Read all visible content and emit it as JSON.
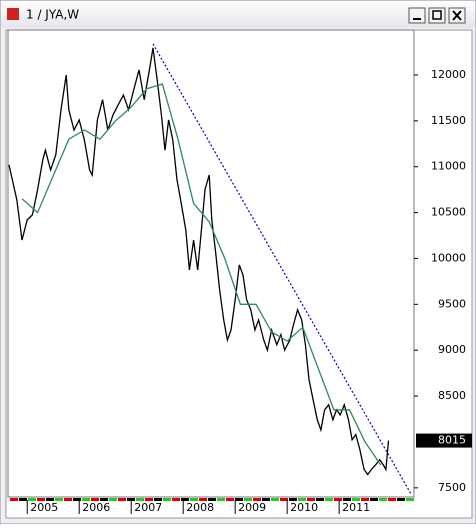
{
  "window_title": "1 / JYA,W",
  "chart_data": {
    "type": "line",
    "series": [
      {
        "color": "#000000",
        "style": "solid",
        "x": [
          2004.65,
          2004.8,
          2004.9,
          2005.0,
          2005.1,
          2005.2,
          2005.3,
          2005.35,
          2005.45,
          2005.55,
          2005.65,
          2005.75,
          2005.8,
          2005.9,
          2006.0,
          2006.1,
          2006.2,
          2006.25,
          2006.35,
          2006.45,
          2006.55,
          2006.65,
          2006.75,
          2006.85,
          2006.95,
          2007.05,
          2007.15,
          2007.25,
          2007.35,
          2007.42,
          2007.5,
          2007.58,
          2007.65,
          2007.72,
          2007.8,
          2007.88,
          2007.95,
          2008.05,
          2008.12,
          2008.2,
          2008.28,
          2008.35,
          2008.42,
          2008.5,
          2008.55,
          2008.62,
          2008.7,
          2008.78,
          2008.85,
          2008.92,
          2009.0,
          2009.08,
          2009.15,
          2009.22,
          2009.3,
          2009.38,
          2009.45,
          2009.55,
          2009.62,
          2009.7,
          2009.8,
          2009.88,
          2009.95,
          2010.05,
          2010.12,
          2010.2,
          2010.28,
          2010.35,
          2010.42,
          2010.5,
          2010.58,
          2010.65,
          2010.72,
          2010.8,
          2010.88,
          2010.95,
          2011.02,
          2011.1,
          2011.18,
          2011.25,
          2011.32,
          2011.4,
          2011.48,
          2011.55,
          2011.62,
          2011.7,
          2011.78,
          2011.85,
          2011.9,
          2011.95
        ],
        "values": [
          11020,
          10640,
          10200,
          10420,
          10475,
          10750,
          11075,
          11180,
          10965,
          11130,
          11620,
          12000,
          11620,
          11400,
          11510,
          11290,
          10965,
          10910,
          11510,
          11730,
          11400,
          11565,
          11675,
          11780,
          11620,
          11840,
          12055,
          11730,
          12055,
          12295,
          11945,
          11565,
          11180,
          11510,
          11290,
          10855,
          10640,
          10310,
          9875,
          10200,
          9875,
          10310,
          10750,
          10910,
          10420,
          10090,
          9660,
          9330,
          9110,
          9220,
          9550,
          9930,
          9820,
          9550,
          9440,
          9220,
          9330,
          9110,
          9000,
          9220,
          9060,
          9170,
          9000,
          9110,
          9275,
          9440,
          9330,
          9060,
          8680,
          8460,
          8240,
          8130,
          8350,
          8405,
          8240,
          8350,
          8295,
          8405,
          8240,
          8025,
          8080,
          7915,
          7700,
          7645,
          7700,
          7750,
          7805,
          7750,
          7700,
          8015
        ]
      },
      {
        "color": "#2e8b57",
        "style": "solid",
        "x": [
          2004.9,
          2005.2,
          2005.5,
          2005.8,
          2006.1,
          2006.4,
          2006.7,
          2007.0,
          2007.3,
          2007.6,
          2007.9,
          2008.2,
          2008.5,
          2008.8,
          2009.1,
          2009.4,
          2009.7,
          2010.0,
          2010.3,
          2010.6,
          2010.9,
          2011.2,
          2011.5,
          2011.8
        ],
        "values": [
          10650,
          10500,
          10900,
          11300,
          11400,
          11300,
          11500,
          11650,
          11850,
          11900,
          11300,
          10600,
          10400,
          10000,
          9500,
          9500,
          9200,
          9100,
          9250,
          8800,
          8350,
          8350,
          8000,
          7750
        ]
      },
      {
        "color": "#0000cc",
        "style": "dotted",
        "x": [
          2007.42,
          2012.38
        ],
        "values": [
          12338,
          7435
        ]
      }
    ],
    "last_value": 8015,
    "xlim": [
      2004.63,
      2012.44
    ],
    "xticks": [
      2005,
      2006,
      2007,
      2008,
      2009,
      2010,
      2011
    ],
    "ylim": [
      7400,
      12490
    ],
    "yticks": [
      7500,
      8500,
      9000,
      9500,
      10000,
      10500,
      11000,
      11500,
      12000
    ]
  }
}
